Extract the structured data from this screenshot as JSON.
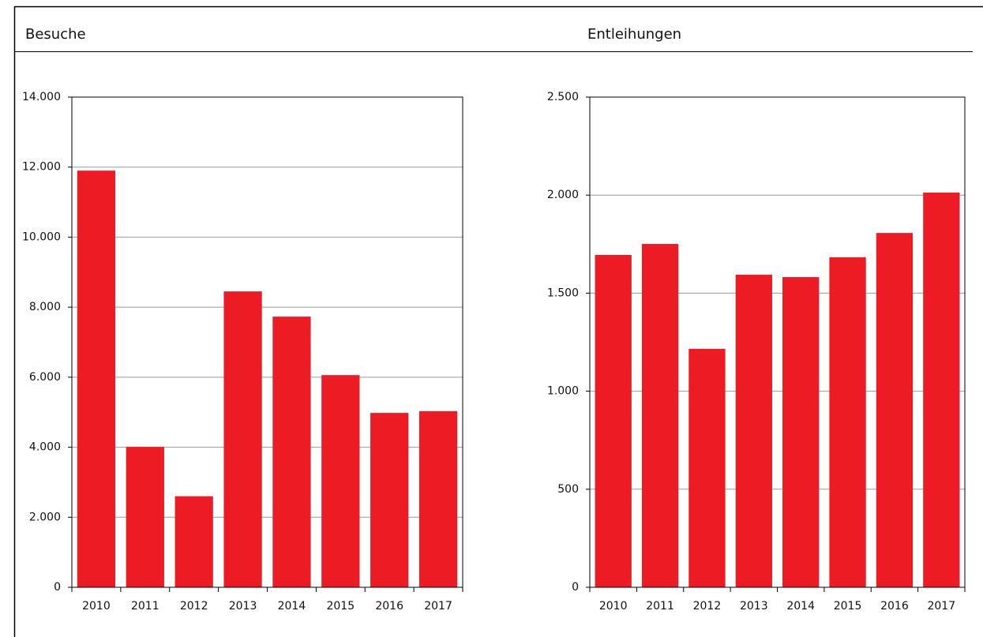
{
  "chart_data": [
    {
      "type": "bar",
      "title": "Besuche",
      "categories": [
        "2010",
        "2011",
        "2012",
        "2013",
        "2014",
        "2015",
        "2016",
        "2017"
      ],
      "values": [
        11900,
        4010,
        2600,
        8450,
        7730,
        6060,
        4980,
        5030
      ],
      "color": "#ed1c24",
      "ylim": [
        0,
        14000
      ],
      "yticks": [
        0,
        {
          "value": 2000,
          "label": "2.000"
        },
        {
          "value": 4000,
          "label": "4.000"
        },
        {
          "value": 6000,
          "label": "6.000"
        },
        {
          "value": 8000,
          "label": "8.000"
        },
        {
          "value": 10000,
          "label": "10.000"
        },
        {
          "value": 12000,
          "label": "12.000"
        },
        {
          "value": 14000,
          "label": "14.000"
        }
      ],
      "grid": true
    },
    {
      "type": "bar",
      "title": "Entleihungen",
      "categories": [
        "2010",
        "2011",
        "2012",
        "2013",
        "2014",
        "2015",
        "2016",
        "2017"
      ],
      "values": [
        1695,
        1751,
        1216,
        1594,
        1582,
        1683,
        1807,
        2013
      ],
      "color": "#ed1c24",
      "ylim": [
        0,
        2500
      ],
      "yticks": [
        0,
        500,
        {
          "value": 1000,
          "label": "1.000"
        },
        {
          "value": 1500,
          "label": "1.500"
        },
        {
          "value": 2000,
          "label": "2.000"
        },
        {
          "value": 2500,
          "label": "2.500"
        }
      ],
      "grid": true
    }
  ]
}
